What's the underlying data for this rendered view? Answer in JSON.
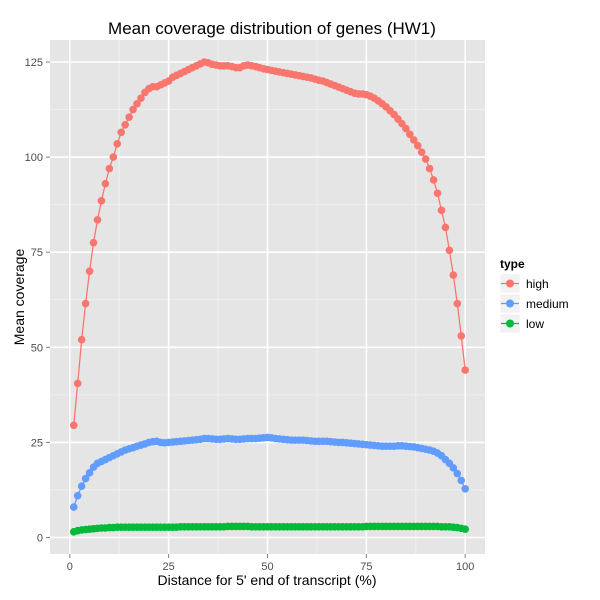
{
  "chart_data": {
    "type": "line",
    "title": "Mean coverage distribution of genes (HW1)",
    "xlabel": "Distance for 5' end of transcript (%)",
    "ylabel": "Mean coverage",
    "xlim": [
      0,
      100
    ],
    "ylim": [
      0,
      125
    ],
    "x_ticks": [
      0,
      25,
      50,
      75,
      100
    ],
    "y_ticks": [
      0,
      25,
      50,
      75,
      100,
      125
    ],
    "grid": true,
    "legend": {
      "title": "type",
      "position": "right"
    },
    "x": [
      1,
      2,
      3,
      4,
      5,
      6,
      7,
      8,
      9,
      10,
      11,
      12,
      13,
      14,
      15,
      16,
      17,
      18,
      19,
      20,
      21,
      22,
      23,
      24,
      25,
      26,
      27,
      28,
      29,
      30,
      31,
      32,
      33,
      34,
      35,
      36,
      37,
      38,
      39,
      40,
      41,
      42,
      43,
      44,
      45,
      46,
      47,
      48,
      49,
      50,
      51,
      52,
      53,
      54,
      55,
      56,
      57,
      58,
      59,
      60,
      61,
      62,
      63,
      64,
      65,
      66,
      67,
      68,
      69,
      70,
      71,
      72,
      73,
      74,
      75,
      76,
      77,
      78,
      79,
      80,
      81,
      82,
      83,
      84,
      85,
      86,
      87,
      88,
      89,
      90,
      91,
      92,
      93,
      94,
      95,
      96,
      97,
      98,
      99,
      100
    ],
    "series": [
      {
        "name": "high",
        "color": "#F8766D",
        "values": [
          29.5,
          40.5,
          52,
          61.5,
          70,
          77.5,
          83.5,
          88.5,
          93,
          97,
          100,
          103.5,
          106.5,
          108.5,
          110.5,
          112.5,
          114,
          115.5,
          117,
          118,
          118.5,
          118.5,
          119,
          119.5,
          120,
          121,
          121.5,
          122,
          122.5,
          123,
          123.5,
          124,
          124.5,
          125,
          124.8,
          124.4,
          124.2,
          124,
          124,
          124,
          123.8,
          123.5,
          123.5,
          124,
          124.2,
          124,
          123.8,
          123.5,
          123.2,
          123,
          122.8,
          122.6,
          122.4,
          122.2,
          122,
          121.8,
          121.6,
          121.4,
          121.2,
          121,
          120.8,
          120.5,
          120.2,
          120,
          119.6,
          119.2,
          118.8,
          118.4,
          118,
          117.6,
          117.2,
          116.8,
          116.6,
          116.6,
          116.4,
          116,
          115.5,
          114.8,
          114,
          113.2,
          112.2,
          111.2,
          110,
          108.8,
          107.5,
          106,
          104.5,
          103,
          101.3,
          99.5,
          97,
          94,
          90.5,
          86,
          81.5,
          75.5,
          69,
          61.5,
          53,
          44
        ]
      },
      {
        "name": "medium",
        "color": "#619CFF",
        "values": [
          8,
          11,
          13.5,
          15.5,
          17,
          18.5,
          19.5,
          20,
          20.5,
          21,
          21.5,
          22,
          22.5,
          23,
          23.3,
          23.6,
          24,
          24.3,
          24.6,
          25,
          25.2,
          25.3,
          25,
          24.9,
          25,
          25.1,
          25.2,
          25.3,
          25.4,
          25.5,
          25.6,
          25.7,
          25.8,
          26,
          26,
          25.9,
          25.8,
          25.8,
          25.9,
          26,
          25.9,
          25.8,
          25.8,
          25.9,
          26,
          26,
          26,
          26.1,
          26.2,
          26.3,
          26.2,
          26,
          25.9,
          25.8,
          25.7,
          25.6,
          25.6,
          25.6,
          25.6,
          25.5,
          25.4,
          25.3,
          25.3,
          25.3,
          25.3,
          25.2,
          25.1,
          25,
          25,
          24.9,
          24.8,
          24.7,
          24.6,
          24.5,
          24.4,
          24.3,
          24.2,
          24.1,
          24,
          24,
          24,
          24,
          24.1,
          24.1,
          24,
          23.9,
          23.8,
          23.6,
          23.4,
          23.2,
          23,
          22.7,
          22.2,
          21.5,
          20.5,
          19.5,
          18.3,
          16.8,
          15,
          12.8
        ]
      },
      {
        "name": "low",
        "color": "#00BA38",
        "values": [
          1.5,
          1.8,
          2,
          2.1,
          2.2,
          2.3,
          2.4,
          2.5,
          2.5,
          2.6,
          2.6,
          2.7,
          2.7,
          2.7,
          2.7,
          2.7,
          2.7,
          2.7,
          2.7,
          2.7,
          2.7,
          2.7,
          2.7,
          2.7,
          2.7,
          2.7,
          2.7,
          2.8,
          2.8,
          2.8,
          2.8,
          2.8,
          2.8,
          2.8,
          2.8,
          2.8,
          2.8,
          2.8,
          2.8,
          2.9,
          2.9,
          2.9,
          2.9,
          2.9,
          2.9,
          2.8,
          2.8,
          2.8,
          2.8,
          2.8,
          2.8,
          2.8,
          2.8,
          2.8,
          2.8,
          2.8,
          2.8,
          2.8,
          2.8,
          2.8,
          2.8,
          2.8,
          2.8,
          2.8,
          2.8,
          2.8,
          2.8,
          2.8,
          2.8,
          2.8,
          2.8,
          2.8,
          2.8,
          2.8,
          2.9,
          2.9,
          2.9,
          2.9,
          2.9,
          2.9,
          2.9,
          2.9,
          2.9,
          2.9,
          2.9,
          2.9,
          2.9,
          2.9,
          2.9,
          2.9,
          2.9,
          2.9,
          2.9,
          2.8,
          2.8,
          2.8,
          2.7,
          2.6,
          2.4,
          2.2
        ]
      }
    ]
  }
}
